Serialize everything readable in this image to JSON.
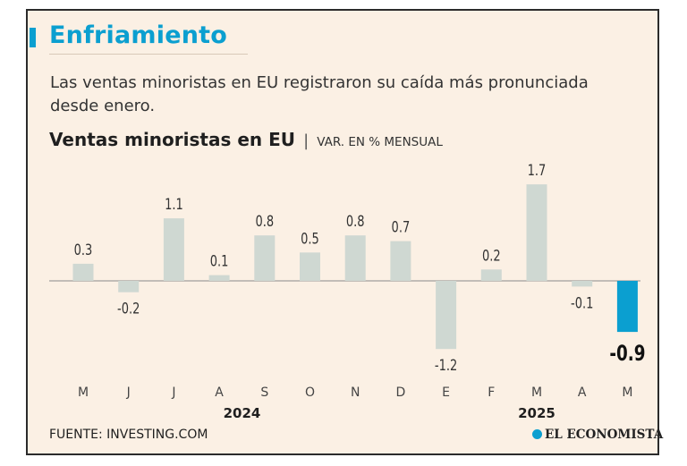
{
  "header": {
    "title": "Enfriamiento",
    "subtitle": "Las ventas minoristas en EU registraron su caída más pronunciada desde enero."
  },
  "chart_title": {
    "main": "Ventas minoristas en EU",
    "separator": "|",
    "unit": "VAR. EN % MENSUAL"
  },
  "footer": {
    "source": "FUENTE: INVESTING.COM",
    "brand": "EL ECONOMISTA"
  },
  "colors": {
    "bar": "#cfd8d2",
    "highlight": "#0b9fd0",
    "background": "#fbf0e4"
  },
  "chart_data": {
    "type": "bar",
    "categories": [
      "M",
      "J",
      "J",
      "A",
      "S",
      "O",
      "N",
      "D",
      "E",
      "F",
      "M",
      "A",
      "M"
    ],
    "values": [
      0.3,
      -0.2,
      1.1,
      0.1,
      0.8,
      0.5,
      0.8,
      0.7,
      -1.2,
      0.2,
      1.7,
      -0.1,
      -0.9
    ],
    "value_labels": [
      "0.3",
      "-0.2",
      "1.1",
      "0.1",
      "0.8",
      "0.5",
      "0.8",
      "0.7",
      "-1.2",
      "0.2",
      "1.7",
      "-0.1",
      "-0.9"
    ],
    "highlight_index": 12,
    "year_labels": [
      {
        "label": "2024",
        "category_index": 3.5
      },
      {
        "label": "2025",
        "category_index": 10
      }
    ],
    "ylim": [
      -1.2,
      1.7
    ],
    "grid": false,
    "zero_line": true
  }
}
